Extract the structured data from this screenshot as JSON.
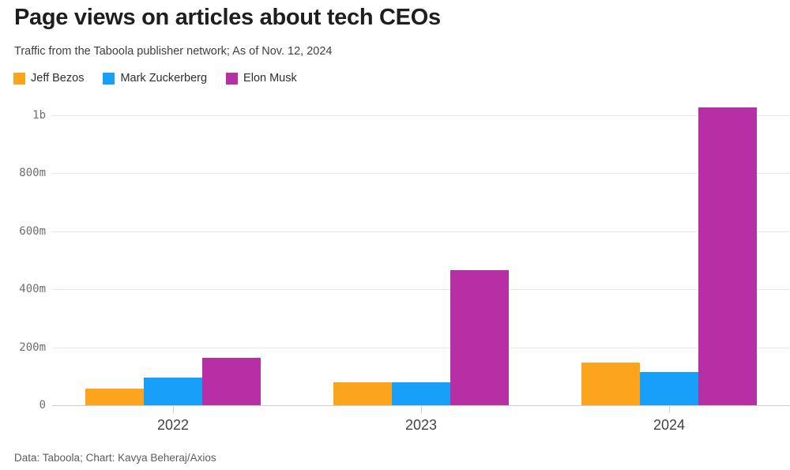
{
  "header": {
    "title": "Page views on articles about tech CEOs",
    "subtitle": "Traffic from the Taboola publisher network; As of Nov. 12, 2024"
  },
  "legend": [
    {
      "label": "Jeff Bezos",
      "color": "#fba41c"
    },
    {
      "label": "Mark Zuckerberg",
      "color": "#18a0f8"
    },
    {
      "label": "Elon Musk",
      "color": "#b62fa4"
    }
  ],
  "footer": {
    "credit": "Data: Taboola; Chart: Kavya Beheraj/Axios"
  },
  "chart_data": {
    "type": "bar",
    "title": "Page views on articles about tech CEOs",
    "subtitle": "Traffic from the Taboola publisher network; As of Nov. 12, 2024",
    "unit": "page views (millions)",
    "categories": [
      "2022",
      "2023",
      "2024"
    ],
    "series": [
      {
        "name": "Jeff Bezos",
        "color": "#fba41c",
        "values": [
          57,
          80,
          146
        ]
      },
      {
        "name": "Mark Zuckerberg",
        "color": "#18a0f8",
        "values": [
          95,
          78,
          114
        ]
      },
      {
        "name": "Elon Musk",
        "color": "#b62fa4",
        "values": [
          164,
          466,
          1027
        ]
      }
    ],
    "y_ticks": [
      {
        "value": 0,
        "label": "0"
      },
      {
        "value": 200,
        "label": "200m"
      },
      {
        "value": 400,
        "label": "400m"
      },
      {
        "value": 600,
        "label": "600m"
      },
      {
        "value": 800,
        "label": "800m"
      },
      {
        "value": 1000,
        "label": "1b"
      }
    ],
    "ylim": [
      0,
      1045
    ],
    "grid": "horizontal",
    "legend_position": "top-left"
  }
}
